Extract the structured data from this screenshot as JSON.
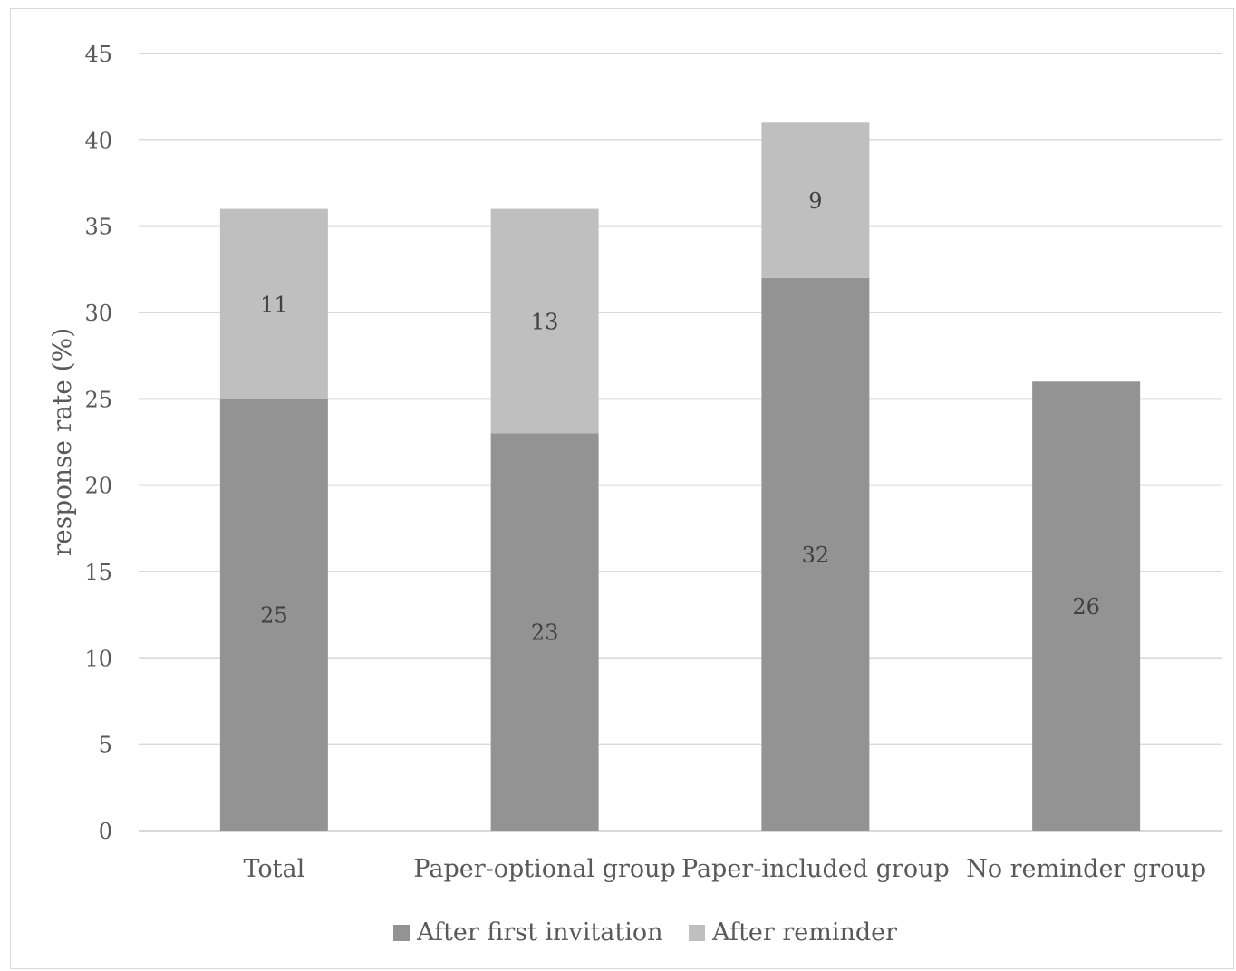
{
  "chart_data": {
    "type": "bar",
    "stacked": true,
    "title": "",
    "xlabel": "",
    "ylabel": "response rate (%)",
    "ylim": [
      0,
      45
    ],
    "yticks": [
      0,
      5,
      10,
      15,
      20,
      25,
      30,
      35,
      40,
      45
    ],
    "grid": true,
    "legend_position": "bottom",
    "categories": [
      "Total",
      "Paper-optional group",
      "Paper-included group",
      "No reminder group"
    ],
    "series": [
      {
        "name": "After first invitation",
        "color": "#939393",
        "values": [
          25,
          23,
          32,
          26
        ]
      },
      {
        "name": "After reminder",
        "color": "#bfbfbf",
        "values": [
          11,
          13,
          9,
          null
        ]
      }
    ],
    "data_labels": true
  }
}
